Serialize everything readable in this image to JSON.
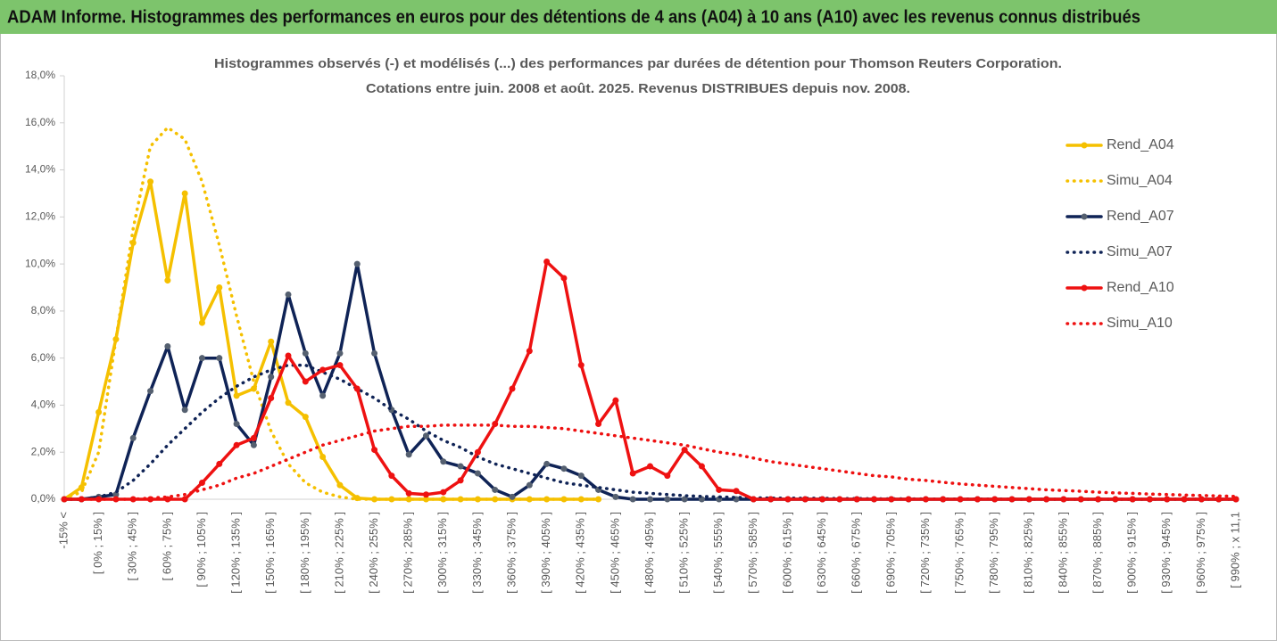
{
  "header": {
    "title": "ADAM Informe. Histogrammes des performances en euros pour des détentions de 4 ans (A04) à 10 ans (A10) avec les revenus connus distribués"
  },
  "chart_data": {
    "type": "line",
    "title": "Histogrammes observés (-) et modélisés (...) des performances par durées de détention pour Thomson Reuters Corporation.",
    "subtitle": "Cotations entre juin. 2008 et août. 2025. Revenus DISTRIBUES depuis nov. 2008.",
    "categories": [
      "-15% <",
      null,
      "[ 0% ; 15% ]",
      null,
      "[ 30% ; 45% ]",
      null,
      "[ 60% ; 75% ]",
      null,
      "[ 90% ; 105% ]",
      null,
      "[ 120% ; 135% ]",
      null,
      "[ 150% ; 165% ]",
      null,
      "[ 180% ; 195% ]",
      null,
      "[ 210% ; 225% ]",
      null,
      "[ 240% ; 255% ]",
      null,
      "[ 270% ; 285% ]",
      null,
      "[ 300% ; 315% ]",
      null,
      "[ 330% ; 345% ]",
      null,
      "[ 360% ; 375% ]",
      null,
      "[ 390% ; 405% ]",
      null,
      "[ 420% ; 435% ]",
      null,
      "[ 450% ; 465% ]",
      null,
      "[ 480% ; 495% ]",
      null,
      "[ 510% ; 525% ]",
      null,
      "[ 540% ; 555% ]",
      null,
      "[ 570% ; 585% ]",
      null,
      "[ 600% ; 615% ]",
      null,
      "[ 630% ; 645% ]",
      null,
      "[ 660% ; 675% ]",
      null,
      "[ 690% ; 705% ]",
      null,
      "[ 720% ; 735% ]",
      null,
      "[ 750% ; 765% ]",
      null,
      "[ 780% ; 795% ]",
      null,
      "[ 810% ; 825% ]",
      null,
      "[ 840% ; 855% ]",
      null,
      "[ 870% ; 885% ]",
      null,
      "[ 900% ; 915% ]",
      null,
      "[ 930% ; 945% ]",
      null,
      "[ 960% ; 975% ]",
      null,
      "[ 990% ; x 11,1"
    ],
    "series": [
      {
        "name": "Rend_A04",
        "color": "#f5c000",
        "style": "solid",
        "values": [
          0,
          0.5,
          3.7,
          6.8,
          10.9,
          13.5,
          9.3,
          13.0,
          7.5,
          9.0,
          4.4,
          4.7,
          6.7,
          4.1,
          3.5,
          1.8,
          0.6,
          0.05,
          0,
          0,
          0,
          0,
          0,
          0,
          0,
          0,
          0,
          0,
          0,
          0,
          0,
          0,
          null,
          null,
          null,
          null,
          null,
          null,
          null,
          null,
          null,
          null,
          null,
          null,
          null,
          null,
          null,
          null,
          null,
          null,
          null,
          null,
          null,
          null,
          null,
          null,
          null,
          null,
          null,
          null,
          null,
          null,
          null,
          null,
          null,
          null,
          null,
          null,
          null
        ]
      },
      {
        "name": "Simu_A04",
        "color": "#f5c000",
        "style": "dotted",
        "values": [
          0.05,
          0.3,
          2.0,
          6.8,
          11.5,
          15.0,
          15.8,
          15.3,
          13.5,
          10.8,
          7.8,
          5.0,
          2.9,
          1.5,
          0.7,
          0.3,
          0.1,
          0,
          0,
          0,
          0,
          0,
          0,
          0,
          0,
          0,
          0,
          0,
          0,
          0,
          0,
          0,
          null,
          null,
          null,
          null,
          null,
          null,
          null,
          null,
          null,
          null,
          null,
          null,
          null,
          null,
          null,
          null,
          null,
          null,
          null,
          null,
          null,
          null,
          null,
          null,
          null,
          null,
          null,
          null,
          null,
          null,
          null,
          null,
          null,
          null,
          null,
          null,
          null
        ]
      },
      {
        "name": "Rend_A07",
        "color": "#0f2356",
        "style": "solid",
        "values": [
          0,
          0,
          0.1,
          0.2,
          2.6,
          4.6,
          6.5,
          3.8,
          6.0,
          6.0,
          3.2,
          2.3,
          5.2,
          8.7,
          6.2,
          4.4,
          6.2,
          10.0,
          6.2,
          3.8,
          1.9,
          2.7,
          1.6,
          1.4,
          1.1,
          0.4,
          0.1,
          0.6,
          1.5,
          1.3,
          1.0,
          0.4,
          0.1,
          0,
          0,
          0,
          0,
          0,
          0,
          0,
          0,
          0,
          0,
          0,
          0,
          0,
          0,
          0,
          0,
          0,
          0,
          0,
          0,
          0,
          0,
          0,
          0,
          0,
          0,
          0,
          0,
          0,
          0,
          0,
          0,
          0,
          0,
          0,
          0
        ]
      },
      {
        "name": "Simu_A07",
        "color": "#0f2356",
        "style": "dotted",
        "values": [
          0,
          0,
          0.1,
          0.3,
          0.8,
          1.5,
          2.3,
          3.0,
          3.7,
          4.3,
          4.8,
          5.2,
          5.5,
          5.7,
          5.7,
          5.4,
          5.1,
          4.7,
          4.3,
          3.8,
          3.4,
          2.9,
          2.5,
          2.2,
          1.8,
          1.5,
          1.3,
          1.1,
          0.9,
          0.7,
          0.6,
          0.5,
          0.4,
          0.3,
          0.25,
          0.2,
          0.15,
          0.12,
          0.1,
          0.08,
          0.06,
          0.05,
          0.05,
          0.04,
          0.04,
          0.03,
          0.03,
          0.02,
          0.02,
          0.02,
          0.01,
          0.01,
          0.01,
          0.01,
          0.01,
          0,
          0,
          0,
          0,
          0,
          0,
          0,
          0,
          0,
          0,
          0,
          0,
          0,
          0
        ]
      },
      {
        "name": "Rend_A10",
        "color": "#ee1111",
        "style": "solid",
        "values": [
          0,
          0,
          0,
          0,
          0,
          0,
          0,
          0,
          0.7,
          1.5,
          2.3,
          2.6,
          4.3,
          6.1,
          5.0,
          5.5,
          5.7,
          4.7,
          2.1,
          1.0,
          0.25,
          0.2,
          0.3,
          0.8,
          2.0,
          3.2,
          4.7,
          6.3,
          10.1,
          9.4,
          5.7,
          3.2,
          4.2,
          1.1,
          1.4,
          1.0,
          2.1,
          1.4,
          0.4,
          0.35,
          0,
          0,
          0,
          0,
          0,
          0,
          0,
          0,
          0,
          0,
          0,
          0,
          0,
          0,
          0,
          0,
          0,
          0,
          0,
          0,
          0,
          0,
          0,
          0,
          0,
          0,
          0,
          0,
          0
        ]
      },
      {
        "name": "Simu_A10",
        "color": "#ee1111",
        "style": "dotted",
        "values": [
          0,
          0,
          0,
          0,
          0,
          0.05,
          0.1,
          0.2,
          0.4,
          0.6,
          0.9,
          1.1,
          1.4,
          1.7,
          2.0,
          2.3,
          2.5,
          2.7,
          2.9,
          3.0,
          3.1,
          3.1,
          3.15,
          3.15,
          3.15,
          3.15,
          3.1,
          3.1,
          3.05,
          3.0,
          2.9,
          2.8,
          2.7,
          2.6,
          2.5,
          2.4,
          2.3,
          2.15,
          2.0,
          1.9,
          1.75,
          1.6,
          1.5,
          1.4,
          1.3,
          1.2,
          1.1,
          1.0,
          0.95,
          0.85,
          0.8,
          0.72,
          0.65,
          0.6,
          0.55,
          0.5,
          0.45,
          0.4,
          0.37,
          0.34,
          0.3,
          0.27,
          0.25,
          0.22,
          0.2,
          0.18,
          0.16,
          0.14,
          0.12
        ]
      }
    ],
    "ylim": [
      0,
      18
    ],
    "yticks": [
      {
        "value": 0,
        "label": "0,0%"
      },
      {
        "value": 2,
        "label": "2,0%"
      },
      {
        "value": 4,
        "label": "4,0%"
      },
      {
        "value": 6,
        "label": "6,0%"
      },
      {
        "value": 8,
        "label": "8,0%"
      },
      {
        "value": 10,
        "label": "10,0%"
      },
      {
        "value": 12,
        "label": "12,0%"
      },
      {
        "value": 14,
        "label": "14,0%"
      },
      {
        "value": 16,
        "label": "16,0%"
      },
      {
        "value": 18,
        "label": "18,0%"
      }
    ],
    "legend": "right"
  }
}
